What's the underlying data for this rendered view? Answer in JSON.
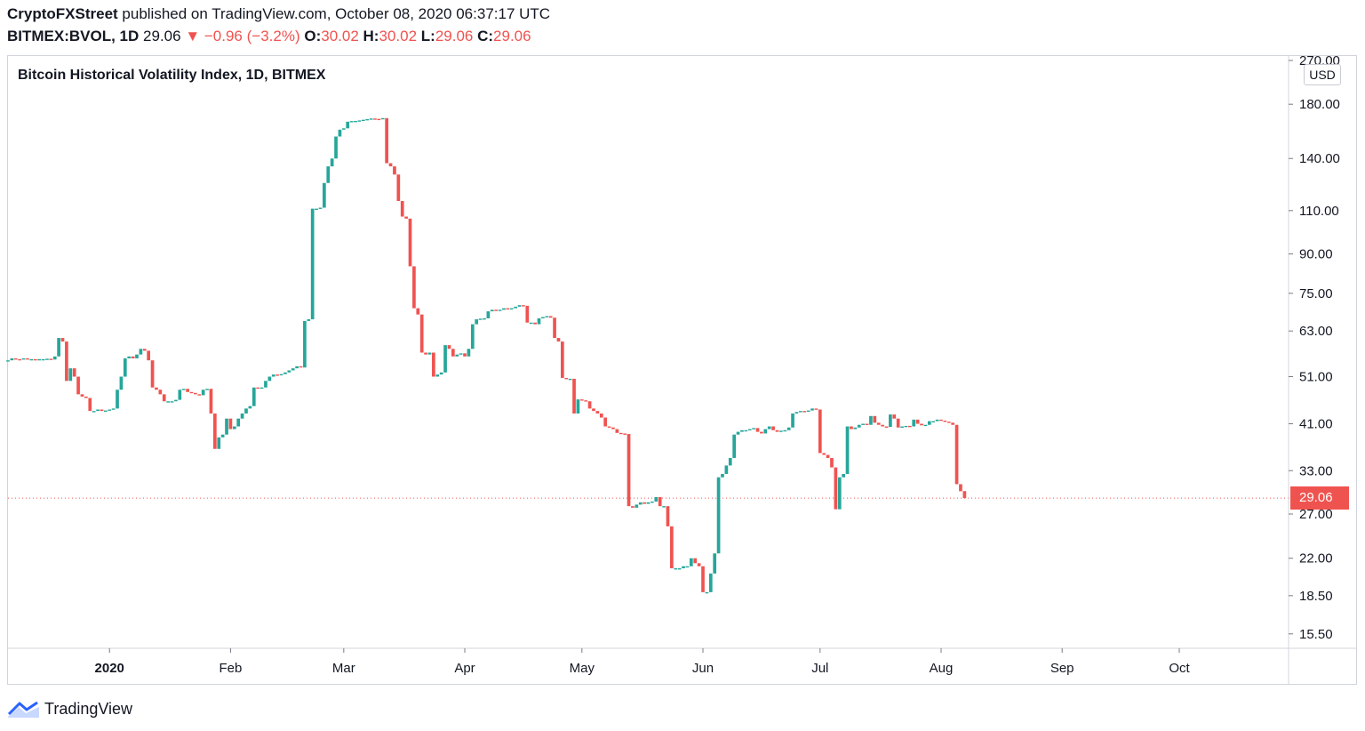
{
  "header": {
    "author": "CryptoFXStreet",
    "published_text": " published on TradingView.com, October 08, 2020 06:37:17 UTC",
    "symbol": "BITMEX:BVOL, 1D",
    "last": "29.06",
    "arrow": "▼",
    "change": "−0.96 (−3.2%)",
    "o_label": "O:",
    "o_value": "30.02",
    "h_label": "H:",
    "h_value": "30.02",
    "l_label": "L:",
    "l_value": "29.06",
    "c_label": "C:",
    "c_value": "29.06"
  },
  "currency_label": "USD",
  "last_price_label": "29.06",
  "brand": "TradingView",
  "colors": {
    "up": "#26a69a",
    "down": "#ef5350",
    "grid": "#e0e3eb",
    "text": "#131722"
  },
  "chart_data": {
    "type": "candlestick",
    "title": "Bitcoin Historical Volatility Index, 1D, BITMEX",
    "scale": "log",
    "ylim": [
      14.5,
      225
    ],
    "y_ticks": [
      "270.00",
      "180.00",
      "140.00",
      "110.00",
      "90.00",
      "75.00",
      "63.00",
      "51.00",
      "41.00",
      "33.00",
      "27.00",
      "22.00",
      "18.50",
      "15.50"
    ],
    "x_ticks": [
      {
        "label": "2020",
        "day": 0,
        "bold": true
      },
      {
        "label": "Feb",
        "day": 31
      },
      {
        "label": "Mar",
        "day": 60
      },
      {
        "label": "Apr",
        "day": 91
      },
      {
        "label": "May",
        "day": 121
      },
      {
        "label": "Jun",
        "day": 152
      },
      {
        "label": "Jul",
        "day": 182
      },
      {
        "label": "Aug",
        "day": 213
      },
      {
        "label": "Sep",
        "day": 244
      },
      {
        "label": "Oct",
        "day": 274
      }
    ],
    "x_range_days": [
      -26,
      302
    ],
    "start_day": -26,
    "last_price": 29.06,
    "closes": [
      55,
      55.5,
      55.3,
      55.2,
      55.5,
      55.3,
      55.3,
      55.1,
      55.3,
      55.3,
      55.4,
      55.2,
      56,
      61,
      60,
      50,
      53,
      51,
      47,
      46.5,
      46.2,
      43.5,
      43.5,
      43.8,
      43.5,
      43.6,
      43.8,
      44,
      48,
      51,
      55.5,
      56,
      55.5,
      56.5,
      58,
      57.5,
      55,
      48.5,
      48,
      47,
      45.5,
      45.5,
      45.5,
      45.8,
      48,
      48.2,
      47.5,
      47.3,
      47,
      46.8,
      48,
      48.2,
      43,
      36.5,
      38.5,
      39,
      42,
      40,
      40.5,
      42,
      43,
      44,
      44.5,
      48.5,
      48.3,
      48.5,
      50,
      51,
      51.5,
      51.3,
      51.6,
      52,
      52.5,
      53,
      53.5,
      53.2,
      66,
      66.5,
      111,
      111,
      111.5,
      125,
      135,
      140,
      155,
      160,
      161,
      166,
      166.5,
      166.6,
      167,
      167.5,
      168,
      168.5,
      168.2,
      168,
      168.8,
      137,
      135,
      130,
      115,
      107,
      106,
      85,
      70,
      68,
      57,
      56.5,
      57,
      51,
      51.5,
      52,
      59,
      58,
      56,
      56.5,
      56.8,
      56,
      58,
      65,
      66.5,
      66.7,
      66.8,
      69,
      69.5,
      69.3,
      69.5,
      70,
      69.8,
      70,
      70.5,
      71,
      70.8,
      65.5,
      65.5,
      65,
      66.8,
      67.2,
      67.5,
      67,
      61,
      60,
      50.7,
      50.4,
      50.5,
      43,
      45.9,
      45.7,
      45.5,
      44,
      43.5,
      43,
      42.2,
      40.5,
      40.3,
      40,
      39.3,
      39.2,
      39.1,
      28,
      27.8,
      28.2,
      28.5,
      28.3,
      28.5,
      28.6,
      29.2,
      28,
      28,
      25.5,
      21,
      21,
      21,
      21.2,
      21.2,
      22,
      21.5,
      21.2,
      18.8,
      18.8,
      20.5,
      22.5,
      32,
      32.5,
      33.8,
      35,
      39,
      39.5,
      39.8,
      39.8,
      40,
      40.2,
      39.5,
      39.2,
      40,
      40.5,
      39.8,
      39.5,
      39.7,
      39.8,
      40.3,
      43,
      43.3,
      43.5,
      43.4,
      43.6,
      44,
      43.8,
      35.8,
      35.5,
      35,
      33.5,
      27.6,
      32,
      32.5,
      40.5,
      40,
      40.3,
      40.8,
      41,
      40.8,
      42.5,
      41.2,
      40.8,
      40.5,
      40.4,
      42.8,
      42,
      40.3,
      40.5,
      40.6,
      40.5,
      41.8,
      41,
      40.7,
      40.8,
      41.5,
      41.5,
      41.8,
      41.6,
      41.4,
      41.2,
      40.8,
      31,
      30,
      29.06
    ],
    "ohlc_last": {
      "open": 30.02,
      "high": 30.02,
      "low": 29.06,
      "close": 29.06
    }
  }
}
